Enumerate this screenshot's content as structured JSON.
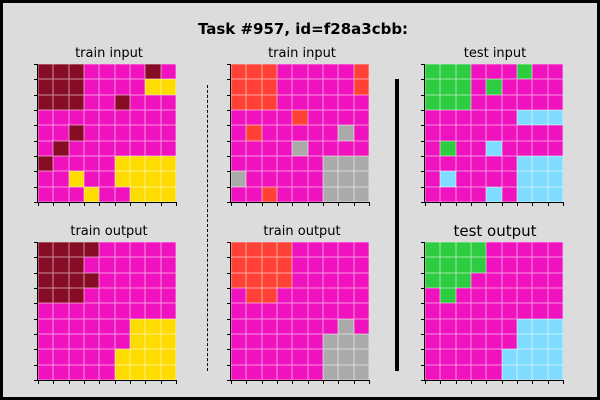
{
  "title": "Task #957, id=f28a3cbb:",
  "colors": {
    "0": "#f012be",
    "1": "#870c25",
    "2": "#ffdc00",
    "3": "#ff4136",
    "4": "#aaaaaa",
    "5": "#2ecc40",
    "6": "#7fdbff"
  },
  "panels": [
    {
      "label": "train input",
      "grid": [
        "111000010",
        "111000022",
        "111001000",
        "000000000",
        "001000000",
        "010000000",
        "100002222",
        "002002222",
        "000200222"
      ]
    },
    {
      "label": "train input",
      "grid": [
        "333000003",
        "333000003",
        "333000000",
        "000030000",
        "030000040",
        "000040000",
        "000000444",
        "400000444",
        "003000444"
      ]
    },
    {
      "label": "test input",
      "grid": [
        "555000500",
        "555050000",
        "555000000",
        "000000666",
        "000000000",
        "050060000",
        "000000666",
        "060000666",
        "000060666"
      ]
    },
    {
      "label": "train output",
      "grid": [
        "111100000",
        "111000000",
        "111100000",
        "111000000",
        "000000000",
        "000000222",
        "000000222",
        "000002222",
        "000002222"
      ]
    },
    {
      "label": "train output",
      "grid": [
        "333300000",
        "333300000",
        "333300000",
        "033000000",
        "000000000",
        "000000040",
        "000000444",
        "000000444",
        "000000444"
      ]
    },
    {
      "label": "test output",
      "grid": [
        "555500000",
        "555500000",
        "555000000",
        "050000000",
        "000000000",
        "000000666",
        "000000666",
        "000006666",
        "000006666"
      ]
    }
  ]
}
